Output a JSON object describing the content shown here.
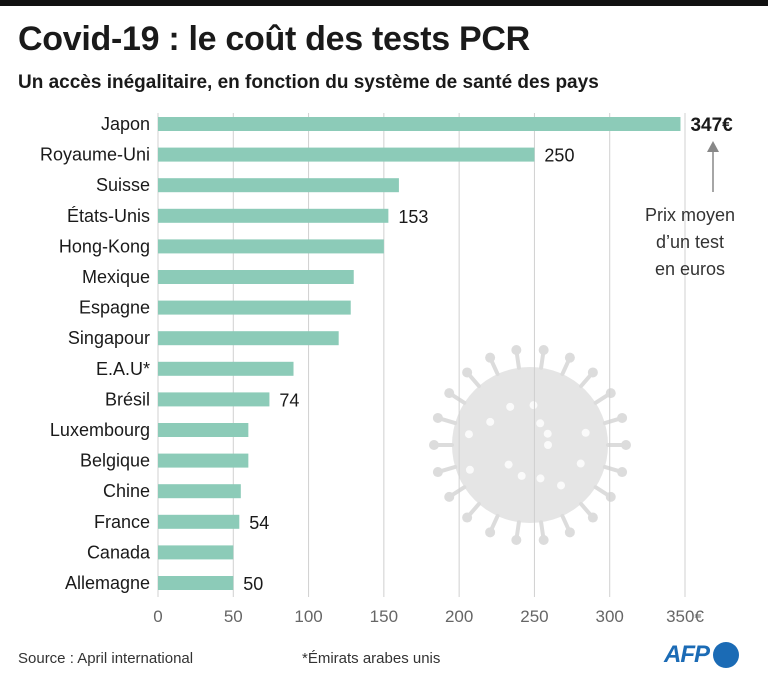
{
  "title": "Covid-19 : le coût des tests PCR",
  "subtitle": "Un accès inégalitaire, en fonction du système de santé des pays",
  "annotation": {
    "text_lines": [
      "Prix moyen",
      "d’un test",
      "en euros"
    ]
  },
  "footer": {
    "source": "Source : April international",
    "footnote": "*Émirats arabes unis",
    "logo_text": "AFP"
  },
  "colors": {
    "bar": "#8ccbb8",
    "gridline": "#d0d0d0",
    "text": "#1a1a1a",
    "tick": "#666666",
    "illustration": "#dcdcdc",
    "logo": "#1b6bb5"
  },
  "chart_data": {
    "type": "bar",
    "orientation": "horizontal",
    "categories": [
      "Japon",
      "Royaume-Uni",
      "Suisse",
      "États-Unis",
      "Hong-Kong",
      "Mexique",
      "Espagne",
      "Singapour",
      "E.A.U*",
      "Brésil",
      "Luxembourg",
      "Belgique",
      "Chine",
      "France",
      "Canada",
      "Allemagne"
    ],
    "values": [
      347,
      250,
      160,
      153,
      150,
      130,
      128,
      120,
      90,
      74,
      60,
      60,
      55,
      54,
      50,
      50
    ],
    "data_labels": [
      {
        "category": "Japon",
        "text": "347€"
      },
      {
        "category": "Royaume-Uni",
        "text": "250"
      },
      {
        "category": "États-Unis",
        "text": "153"
      },
      {
        "category": "Brésil",
        "text": "74"
      },
      {
        "category": "France",
        "text": "54"
      },
      {
        "category": "Allemagne",
        "text": "50"
      }
    ],
    "x_ticks": [
      "0",
      "50",
      "100",
      "150",
      "200",
      "250",
      "300",
      "350€"
    ],
    "x_tick_values": [
      0,
      50,
      100,
      150,
      200,
      250,
      300,
      350
    ],
    "xlim": [
      0,
      350
    ],
    "grid": true,
    "legend": "none"
  }
}
